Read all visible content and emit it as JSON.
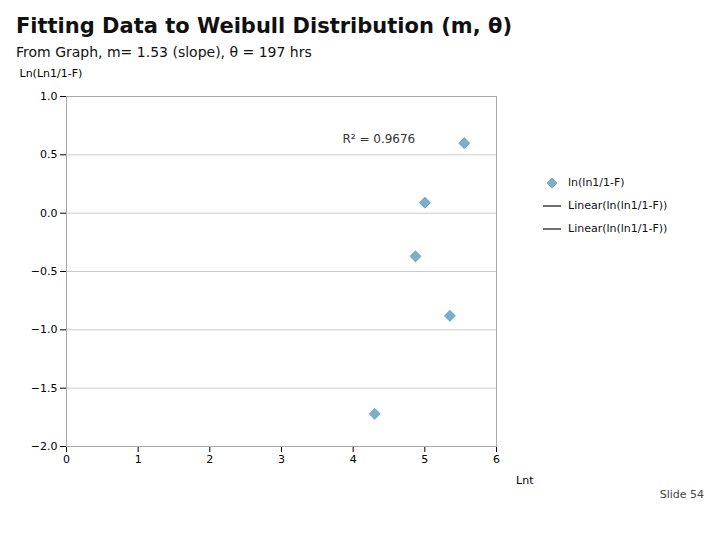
{
  "chart_data": {
    "type": "scatter",
    "title": "Fitting Data to Weibull Distribution (m, θ)",
    "subtitle": "From Graph, m= 1.53 (slope), θ = 197 hrs",
    "caption": "Slide 54",
    "xlabel": "Lnt",
    "ylabel": "Ln(Ln1/1-F)",
    "x": [
      4.3,
      4.87,
      5.0,
      5.35,
      5.55
    ],
    "series": [
      {
        "name": "ln(ln1/1-F)",
        "type": "scatter",
        "marker": "diamond",
        "color": "#7aafcc",
        "values": [
          -1.72,
          -0.37,
          0.09,
          -0.88,
          0.6
        ]
      },
      {
        "name": "Linear(ln(ln1/1-F))",
        "type": "line",
        "line_style": "solid",
        "color": "#404040",
        "values": [
          null,
          null,
          null,
          null,
          null
        ]
      },
      {
        "name": "Linear(ln(ln1/1-F))",
        "type": "line",
        "line_style": "solid",
        "color": "#404040",
        "values": [
          null,
          null,
          null,
          null,
          null
        ]
      }
    ],
    "annotations": [
      {
        "text": "R² = 0.9676",
        "x": 3.85,
        "y": 0.6
      }
    ],
    "xlim": [
      0,
      6
    ],
    "ylim": [
      -2,
      1
    ],
    "xticks": [
      0,
      1,
      2,
      3,
      4,
      5,
      6
    ],
    "yticks": [
      {
        "value": -2,
        "label": "−2.0"
      },
      {
        "value": -1.5,
        "label": "−1.5"
      },
      {
        "value": -1,
        "label": "−1.0"
      },
      {
        "value": -0.5,
        "label": "−0.5"
      },
      {
        "value": 0,
        "label": "0.0"
      },
      {
        "value": 0.5,
        "label": "0.5"
      },
      {
        "value": 1,
        "label": "1.0"
      }
    ],
    "grid": "y",
    "legend": "right"
  }
}
